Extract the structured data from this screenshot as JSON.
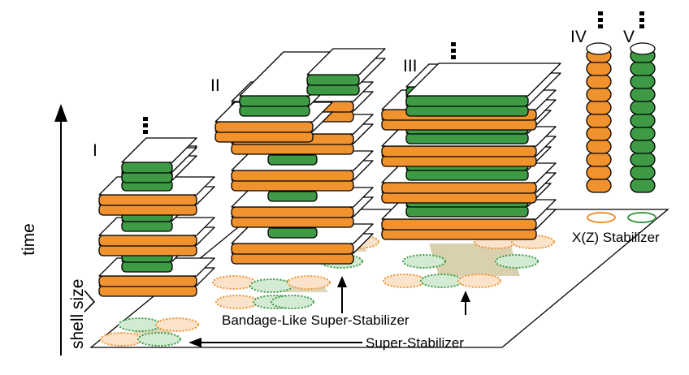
{
  "labels": {
    "time": "time",
    "shell_size": "shell size",
    "stack_1": "I",
    "stack_2": "II",
    "stack_3": "III",
    "stack_4": "IV",
    "stack_5": "V",
    "legend": "X(Z) Stabilizer",
    "bandage": "Bandage-Like Super-Stabilizer",
    "super": "Super-Stabilizer"
  },
  "colors": {
    "x_stabilizer": "#f0922e",
    "z_stabilizer": "#3e9a44",
    "x_fill": "#fbe3cb",
    "z_fill": "#d3ebd3",
    "patch": "#cfc49a",
    "top_face": "#ffffff",
    "outline": "#000000"
  },
  "legend_icons": [
    "x-stabilizer-icon",
    "z-stabilizer-icon"
  ]
}
